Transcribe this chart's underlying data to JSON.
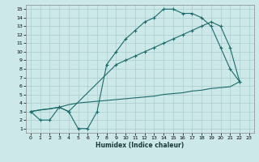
{
  "xlabel": "Humidex (Indice chaleur)",
  "bg_color": "#cce8e8",
  "grid_color": "#aacccc",
  "line_color": "#1a6b6b",
  "xlim": [
    -0.5,
    23.5
  ],
  "ylim": [
    0.5,
    15.5
  ],
  "xticks": [
    0,
    1,
    2,
    3,
    4,
    5,
    6,
    7,
    8,
    9,
    10,
    11,
    12,
    13,
    14,
    15,
    16,
    17,
    18,
    19,
    20,
    21,
    22,
    23
  ],
  "yticks": [
    1,
    2,
    3,
    4,
    5,
    6,
    7,
    8,
    9,
    10,
    11,
    12,
    13,
    14,
    15
  ],
  "line1_x": [
    0,
    1,
    2,
    3,
    4,
    5,
    6,
    7,
    8,
    9,
    10,
    11,
    12,
    13,
    14,
    15,
    16,
    17,
    18,
    19,
    20,
    21,
    22
  ],
  "line1_y": [
    3.0,
    2.0,
    2.0,
    3.5,
    3.0,
    1.0,
    1.0,
    3.0,
    8.5,
    10.0,
    11.5,
    12.5,
    13.5,
    14.0,
    15.0,
    15.0,
    14.5,
    14.5,
    14.0,
    13.0,
    10.5,
    8.0,
    6.5
  ],
  "line2_x": [
    0,
    3,
    4,
    9,
    10,
    11,
    12,
    13,
    14,
    15,
    16,
    17,
    18,
    19,
    20,
    21,
    22
  ],
  "line2_y": [
    3.0,
    3.5,
    3.0,
    8.5,
    9.0,
    9.5,
    10.0,
    10.5,
    11.0,
    11.5,
    12.0,
    12.5,
    13.0,
    13.5,
    13.0,
    10.5,
    6.5
  ],
  "line3_x": [
    0,
    1,
    2,
    3,
    4,
    5,
    6,
    7,
    8,
    9,
    10,
    11,
    12,
    13,
    14,
    15,
    16,
    17,
    18,
    19,
    20,
    21,
    22
  ],
  "line3_y": [
    3.0,
    3.2,
    3.3,
    3.5,
    3.8,
    4.0,
    4.1,
    4.2,
    4.3,
    4.4,
    4.5,
    4.6,
    4.7,
    4.8,
    5.0,
    5.1,
    5.2,
    5.4,
    5.5,
    5.7,
    5.8,
    5.9,
    6.5
  ]
}
